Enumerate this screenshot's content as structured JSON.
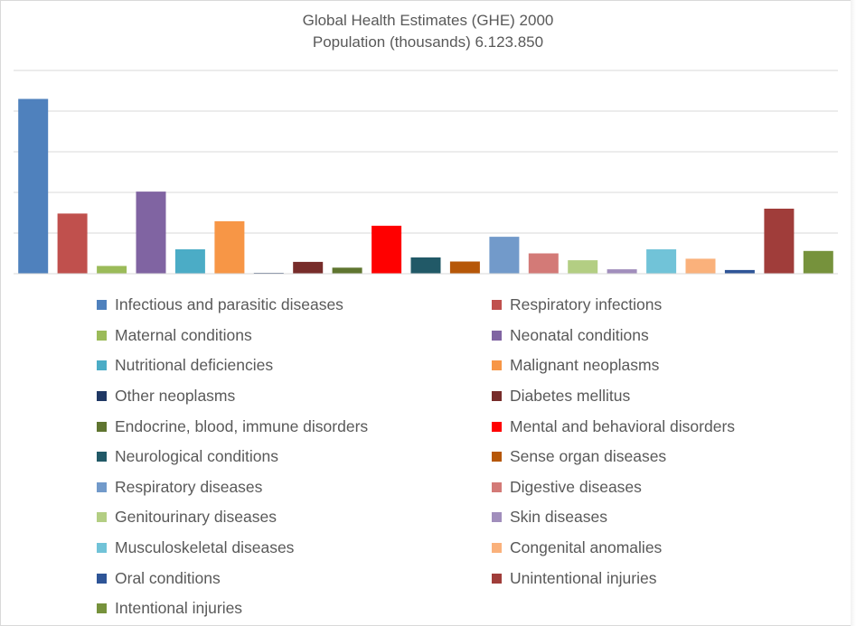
{
  "chart_data": {
    "type": "bar",
    "title": "Global Health Estimates (GHE) 2000",
    "subtitle": "Population (thousands) 6.123.850",
    "xlabel": "",
    "ylabel": "",
    "ylim": [
      0,
      5
    ],
    "grid": true,
    "y_tick_labels_shown": false,
    "legend_placement": "bottom",
    "series": [
      {
        "name": "Infectious and parasitic diseases",
        "value": 4.3,
        "color": "#4f81bd"
      },
      {
        "name": "Respiratory infections",
        "value": 1.48,
        "color": "#c0504d"
      },
      {
        "name": "Maternal conditions",
        "value": 0.19,
        "color": "#9bbb59"
      },
      {
        "name": "Neonatal conditions",
        "value": 2.02,
        "color": "#8064a2"
      },
      {
        "name": "Nutritional deficiencies",
        "value": 0.6,
        "color": "#4bacc6"
      },
      {
        "name": "Malignant neoplasms",
        "value": 1.29,
        "color": "#f79646"
      },
      {
        "name": "Other neoplasms",
        "value": 0.02,
        "color": "#1f3864"
      },
      {
        "name": "Diabetes mellitus",
        "value": 0.29,
        "color": "#772c2a"
      },
      {
        "name": "Endocrine, blood, immune disorders",
        "value": 0.15,
        "color": "#5f7530"
      },
      {
        "name": "Mental and behavioral disorders",
        "value": 1.18,
        "color": "#ff0000"
      },
      {
        "name": "Neurological conditions",
        "value": 0.4,
        "color": "#215967"
      },
      {
        "name": "Sense organ diseases",
        "value": 0.3,
        "color": "#b65708"
      },
      {
        "name": "Respiratory diseases",
        "value": 0.91,
        "color": "#729aca"
      },
      {
        "name": "Digestive diseases",
        "value": 0.5,
        "color": "#d37a77"
      },
      {
        "name": "Genitourinary diseases",
        "value": 0.33,
        "color": "#b3ce83"
      },
      {
        "name": "Skin diseases",
        "value": 0.11,
        "color": "#a18ebc"
      },
      {
        "name": "Musculoskeletal diseases",
        "value": 0.6,
        "color": "#71c3d8"
      },
      {
        "name": "Congenital anomalies",
        "value": 0.37,
        "color": "#fab17b"
      },
      {
        "name": "Oral conditions",
        "value": 0.09,
        "color": "#2e5597"
      },
      {
        "name": "Unintentional injuries",
        "value": 1.6,
        "color": "#a03d3a"
      },
      {
        "name": "Intentional injuries",
        "value": 0.56,
        "color": "#76923c"
      }
    ]
  }
}
